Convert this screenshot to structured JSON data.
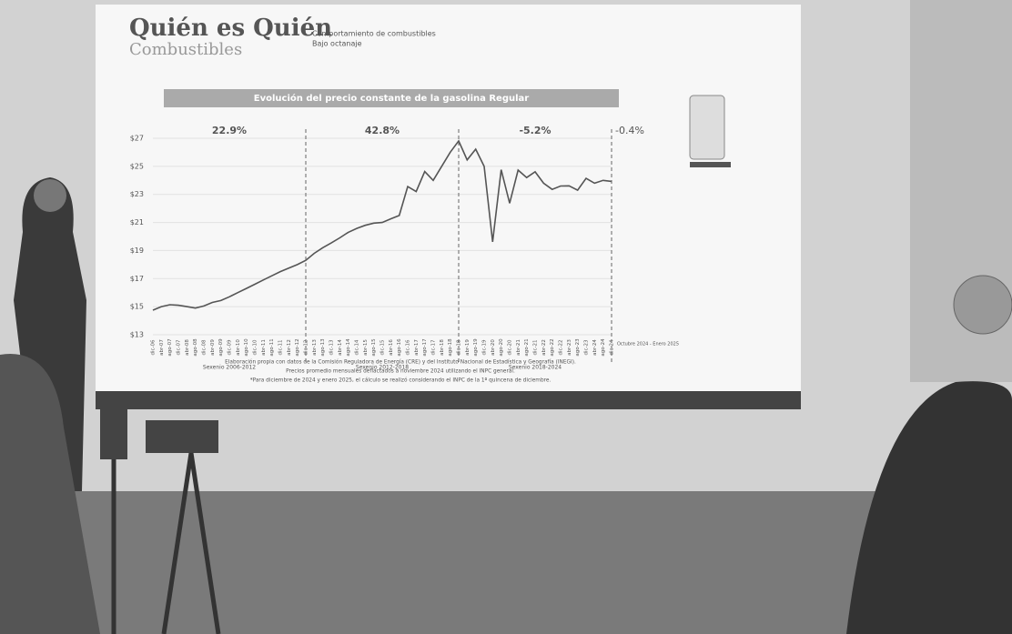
{
  "slide": {
    "brand_title": "Quién es Quién",
    "brand_subtitle": "Combustibles",
    "heading": "Comportamiento de combustibles",
    "subheading": "Bajo octanaje",
    "source_lines": [
      "Elaboración propia con datos de la Comisión Reguladora de Energía (CRE) y del Instituto Nacional de Estadística y Geografía (INEGI).",
      "Precios promedio mensuales deflactados a noviembre 2024 utilizando el INPC general.",
      "*Para diciembre de 2024 y enero 2025, el cálculo se realizó considerando el INPC de la 1ª quincena de diciembre."
    ]
  },
  "chart_data": {
    "type": "line",
    "title": "Evolución del precio constante de la gasolina Regular",
    "categories": [
      "dic-06",
      "abr-07",
      "ago-07",
      "dic-07",
      "abr-08",
      "ago-08",
      "dic-08",
      "abr-09",
      "ago-09",
      "dic-09",
      "abr-10",
      "ago-10",
      "dic-10",
      "abr-11",
      "ago-11",
      "dic-11",
      "abr-12",
      "ago-12",
      "dic-12",
      "abr-13",
      "ago-13",
      "dic-13",
      "abr-14",
      "ago-14",
      "dic-14",
      "abr-15",
      "ago-15",
      "dic-15",
      "abr-16",
      "ago-16",
      "dic-16",
      "abr-17",
      "ago-17",
      "dic-17",
      "abr-18",
      "ago-18",
      "dic-18",
      "abr-19",
      "ago-19",
      "dic-19",
      "abr-20",
      "ago-20",
      "dic-20",
      "abr-21",
      "ago-21",
      "dic-21",
      "abr-22",
      "ago-22",
      "dic-22",
      "abr-23",
      "ago-23",
      "dic-23",
      "abr-24",
      "ago-24",
      "dic-24"
    ],
    "values": [
      14.75,
      15.0,
      15.14,
      15.1,
      15.0,
      14.9,
      15.05,
      15.3,
      15.44,
      15.7,
      16.0,
      16.3,
      16.6,
      16.9,
      17.2,
      17.5,
      17.75,
      18.0,
      18.3,
      18.8,
      19.2,
      19.54,
      19.9,
      20.3,
      20.58,
      20.8,
      20.95,
      21.0,
      21.26,
      21.5,
      23.56,
      23.2,
      24.63,
      24.0,
      25.0,
      26.0,
      26.81,
      25.46,
      26.22,
      25.0,
      19.62,
      24.76,
      22.37,
      24.73,
      24.2,
      24.61,
      23.8,
      23.36,
      23.6,
      23.61,
      23.3,
      24.15,
      23.8,
      24.0,
      23.93
    ],
    "color": "#555555",
    "ylim": [
      13,
      27
    ],
    "yticks": [
      {
        "value": 13,
        "label": "$13"
      },
      {
        "value": 15,
        "label": "$15"
      },
      {
        "value": 17,
        "label": "$17"
      },
      {
        "value": 19,
        "label": "$19"
      },
      {
        "value": 21,
        "label": "$21"
      },
      {
        "value": 23,
        "label": "$23"
      },
      {
        "value": 25,
        "label": "$25"
      },
      {
        "value": 27,
        "label": "$27"
      }
    ],
    "grid": true,
    "periods": [
      {
        "label": "Sexenio 2006-2012",
        "change": "22.9%"
      },
      {
        "label": "Sexenio 2012-2018",
        "change": "42.8%"
      },
      {
        "label": "Sexenio 2018-2024",
        "change": "-5.2%"
      }
    ],
    "last_change": "-0.4%",
    "last_note": "Octubre 2024 - Enero 2025"
  }
}
